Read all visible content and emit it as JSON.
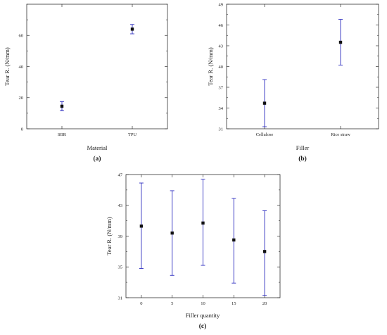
{
  "colors": {
    "error_bar": "#2b2bbf",
    "marker": "#111111"
  },
  "chart_data": [
    {
      "id": "a",
      "type": "scatter",
      "panel_label": "(a)",
      "xlabel": "Material",
      "ylabel": "Tear R. (N/mm)",
      "categories": [
        "SBR",
        "TPU"
      ],
      "ylim": [
        0,
        80
      ],
      "yticks": [
        0,
        20,
        40,
        60
      ],
      "y_minor_step": 10,
      "grid": false,
      "series": [
        {
          "values": [
            14.5,
            64
          ],
          "err_low": [
            11.5,
            61
          ],
          "err_high": [
            17.5,
            67
          ]
        }
      ]
    },
    {
      "id": "b",
      "type": "scatter",
      "panel_label": "(b)",
      "xlabel": "Filler",
      "ylabel": "Tear R. (N/mm)",
      "categories": [
        "Cellulose",
        "Rice straw"
      ],
      "ylim": [
        31,
        49
      ],
      "yticks": [
        31,
        34,
        37,
        40,
        43,
        46,
        49
      ],
      "y_minor_step": 1.5,
      "grid": false,
      "series": [
        {
          "values": [
            34.7,
            43.5
          ],
          "err_low": [
            31.3,
            40.2
          ],
          "err_high": [
            38.1,
            46.8
          ]
        }
      ]
    },
    {
      "id": "c",
      "type": "scatter",
      "panel_label": "(c)",
      "xlabel": "Filler quantity",
      "ylabel": "Tear R. (N/mm)",
      "categories": [
        "0",
        "5",
        "10",
        "15",
        "20"
      ],
      "ylim": [
        31,
        47
      ],
      "yticks": [
        31,
        35,
        39,
        43,
        47
      ],
      "y_minor_step": 2,
      "grid": false,
      "series": [
        {
          "values": [
            40.3,
            39.4,
            40.7,
            38.5,
            37.0
          ],
          "err_low": [
            34.8,
            33.9,
            35.2,
            32.9,
            31.3
          ],
          "err_high": [
            45.9,
            44.9,
            46.4,
            43.9,
            42.3
          ]
        }
      ]
    }
  ]
}
